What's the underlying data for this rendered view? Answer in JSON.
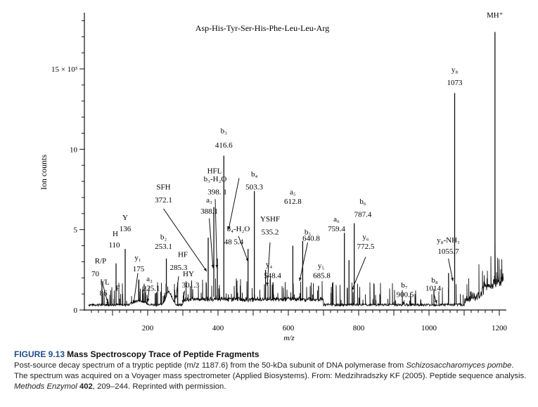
{
  "chart_data": {
    "type": "line",
    "title": "Asp-His-Tyr-Ser-His-Phe-Leu-Leu-Arg",
    "ylabel": "Ion counts",
    "xlabel": "m/z",
    "xlim": [
      20,
      1220
    ],
    "ylim": [
      0,
      18500
    ],
    "x_ticks": [
      200,
      400,
      600,
      800,
      1000,
      1200
    ],
    "x_tick_labels": [
      "200",
      "400",
      "600",
      "800",
      "1000",
      "1200"
    ],
    "y_ticks": [
      0,
      5000,
      10000,
      15000
    ],
    "y_tick_labels": [
      "0",
      "5",
      "10",
      "15 × 10³"
    ],
    "peaks": [
      {
        "x": 70,
        "y": 1600
      },
      {
        "x": 86,
        "y": 700
      },
      {
        "x": 110,
        "y": 2900
      },
      {
        "x": 120,
        "y": 700
      },
      {
        "x": 136,
        "y": 3800
      },
      {
        "x": 175,
        "y": 1900
      },
      {
        "x": 225.1,
        "y": 1100
      },
      {
        "x": 253.1,
        "y": 3200
      },
      {
        "x": 285.3,
        "y": 1700
      },
      {
        "x": 301.3,
        "y": 900
      },
      {
        "x": 372.1,
        "y": 4500
      },
      {
        "x": 388.1,
        "y": 6400
      },
      {
        "x": 398.1,
        "y": 3200
      },
      {
        "x": 416.6,
        "y": 9600
      },
      {
        "x": 485.4,
        "y": 3800
      },
      {
        "x": 503.3,
        "y": 7400
      },
      {
        "x": 535.2,
        "y": 2500
      },
      {
        "x": 548.4,
        "y": 1900
      },
      {
        "x": 612.8,
        "y": 4000
      },
      {
        "x": 640.8,
        "y": 4300
      },
      {
        "x": 685.8,
        "y": 1500
      },
      {
        "x": 759.4,
        "y": 4800
      },
      {
        "x": 772.5,
        "y": 3100
      },
      {
        "x": 787.4,
        "y": 5400
      },
      {
        "x": 900.5,
        "y": 500
      },
      {
        "x": 1014,
        "y": 1300
      },
      {
        "x": 1055.7,
        "y": 2300
      },
      {
        "x": 1073,
        "y": 13500
      },
      {
        "x": 1187.6,
        "y": 17300
      }
    ],
    "annotations": [
      {
        "text": "MH⁺",
        "x": 1187.6,
        "y": 18200
      },
      {
        "text": "y₈",
        "x": 1073,
        "y": 14800
      },
      {
        "text": "1073",
        "x": 1073,
        "y": 14000
      },
      {
        "text": "b₃",
        "x": 416.6,
        "y": 11000
      },
      {
        "text": "416.6",
        "x": 416.6,
        "y": 10100
      },
      {
        "text": "HFL",
        "x": 390,
        "y": 8500
      },
      {
        "text": "b₃-H₂O",
        "x": 392,
        "y": 8000
      },
      {
        "text": "398. 1",
        "x": 398,
        "y": 7200
      },
      {
        "text": "b₄",
        "x": 503.3,
        "y": 8300
      },
      {
        "text": "503.3",
        "x": 503.3,
        "y": 7500
      },
      {
        "text": "SFH",
        "x": 245,
        "y": 7500
      },
      {
        "text": "372.1",
        "x": 245,
        "y": 6700
      },
      {
        "text": "a₃",
        "x": 375,
        "y": 6700
      },
      {
        "text": "388.1",
        "x": 375,
        "y": 6000
      },
      {
        "text": "a₅",
        "x": 612.8,
        "y": 7200
      },
      {
        "text": "612.8",
        "x": 612.8,
        "y": 6600
      },
      {
        "text": "b₆",
        "x": 812,
        "y": 6600
      },
      {
        "text": "787.4",
        "x": 812,
        "y": 5800
      },
      {
        "text": "Y",
        "x": 136,
        "y": 5600
      },
      {
        "text": "136",
        "x": 136,
        "y": 4900
      },
      {
        "text": "YSHF",
        "x": 548,
        "y": 5500
      },
      {
        "text": "b₄-H₂O",
        "x": 458,
        "y": 4900
      },
      {
        "text": "535.2",
        "x": 548,
        "y": 4700
      },
      {
        "text": "48 5.4",
        "x": 445,
        "y": 4100
      },
      {
        "text": "a₆",
        "x": 737,
        "y": 5500
      },
      {
        "text": "759.4",
        "x": 737,
        "y": 4900
      },
      {
        "text": "b₅",
        "x": 655,
        "y": 4700
      },
      {
        "text": "640.8",
        "x": 665,
        "y": 4300
      },
      {
        "text": "H",
        "x": 108,
        "y": 4600
      },
      {
        "text": "110",
        "x": 105,
        "y": 3900
      },
      {
        "text": "b₂",
        "x": 245,
        "y": 4400
      },
      {
        "text": "253.1",
        "x": 245,
        "y": 3800
      },
      {
        "text": "y₆",
        "x": 820,
        "y": 4400
      },
      {
        "text": "772.5",
        "x": 820,
        "y": 3800
      },
      {
        "text": "y₈-NH₃",
        "x": 1055,
        "y": 4200
      },
      {
        "text": "1055.7",
        "x": 1055,
        "y": 3500
      },
      {
        "text": "HF",
        "x": 300,
        "y": 3300
      },
      {
        "text": "R/P",
        "x": 66,
        "y": 2900
      },
      {
        "text": "y₁",
        "x": 172,
        "y": 3100
      },
      {
        "text": "175",
        "x": 174,
        "y": 2400
      },
      {
        "text": "285.3",
        "x": 288,
        "y": 2500
      },
      {
        "text": "HY",
        "x": 316,
        "y": 2100
      },
      {
        "text": "70",
        "x": 51,
        "y": 2100
      },
      {
        "text": "a₂",
        "x": 205,
        "y": 1800
      },
      {
        "text": "y₄",
        "x": 545,
        "y": 2700
      },
      {
        "text": "548.4",
        "x": 555,
        "y": 2000
      },
      {
        "text": "y₅",
        "x": 693,
        "y": 2600
      },
      {
        "text": "685.8",
        "x": 695,
        "y": 2000
      },
      {
        "text": "I/L",
        "x": 78,
        "y": 1600
      },
      {
        "text": "F",
        "x": 115,
        "y": 1200
      },
      {
        "text": "225.1",
        "x": 210,
        "y": 1200
      },
      {
        "text": "301.3",
        "x": 322,
        "y": 1400
      },
      {
        "text": "b₇",
        "x": 930,
        "y": 1400
      },
      {
        "text": "900.5",
        "x": 932,
        "y": 800
      },
      {
        "text": "b₈",
        "x": 1016,
        "y": 1700
      },
      {
        "text": "1014",
        "x": 1012,
        "y": 1200
      },
      {
        "text": "86",
        "x": 74,
        "y": 900
      }
    ],
    "grid": false,
    "legend": "none"
  },
  "caption": {
    "label": "FIGURE 9.13",
    "title": "Mass Spectroscopy Trace of Peptide Fragments",
    "text1": "Post-source decay spectrum of a tryptic peptide (m/z 1187.6) from the 50-kDa subunit of DNA polymerase from ",
    "species": "Schizosaccharomyces pombe",
    "text2": ". The spectrum was acquired on a Voyager mass spectrometer (Applied Biosystems). From: Medzihradszky KF (2005). Peptide sequence analysis. ",
    "journal": "Methods Enzymol",
    "volume": "402",
    "text3": ", 209–244. Reprinted with permission."
  }
}
